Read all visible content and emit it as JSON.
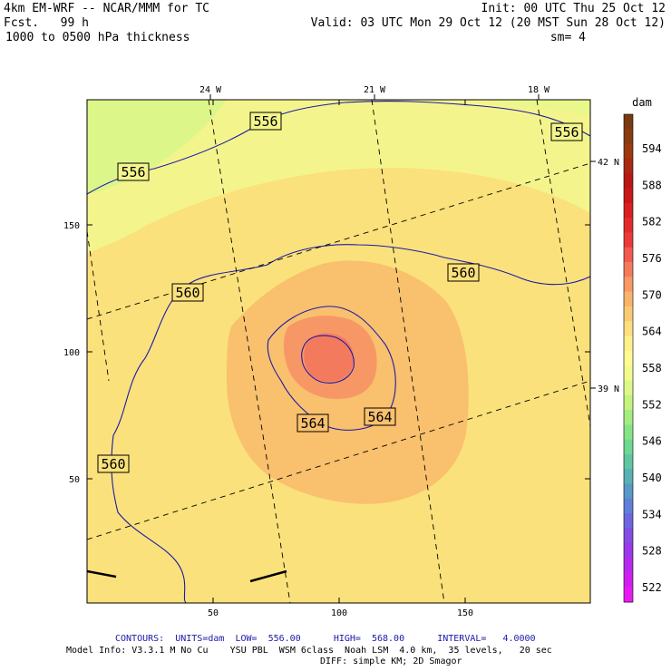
{
  "header": {
    "model_title": "4km EM-WRF -- NCAR/MMM for TC",
    "init": "Init: 00 UTC Thu 25 Oct 12",
    "fcst": "Fcst.   99 h",
    "valid": "Valid: 03 UTC Mon 29 Oct 12 (20 MST Sun 28 Oct 12)",
    "field": "1000 to 0500 hPa thickness",
    "smoothing": "sm= 4"
  },
  "footer": {
    "contours": "CONTOURS:  UNITS=dam  LOW=  556.00      HIGH=  568.00      INTERVAL=   4.0000",
    "model_info": "Model Info: V3.3.1 M No Cu    YSU PBL  WSM 6class  Noah LSM  4.0 km,  35 levels,   20 sec",
    "diff": "DIFF: simple KM; 2D Smagor"
  },
  "chart_data": {
    "type": "contour",
    "units": "dam",
    "grid_range": {
      "x": [
        1,
        199
      ],
      "y": [
        1,
        199
      ]
    },
    "x_ticks": [
      "50",
      "100",
      "150"
    ],
    "y_ticks": [
      "50",
      "100",
      "150"
    ],
    "longitude_labels": [
      "24 W",
      "21 W",
      "18 W"
    ],
    "latitude_labels": [
      "42 N",
      "39 N"
    ],
    "contour_levels": [
      {
        "value": 556,
        "label": "556",
        "label_count": 3
      },
      {
        "value": 560,
        "label": "560",
        "label_count": 3
      },
      {
        "value": 564,
        "label": "564",
        "label_count": 2
      },
      {
        "value": 568,
        "label": "",
        "label_count": 0
      }
    ],
    "contour_labels": [
      "556",
      "556",
      "556",
      "560",
      "560",
      "560",
      "564",
      "564"
    ],
    "thickness_max": {
      "x": 94,
      "y": 96,
      "approx_value": 569
    },
    "colorbar": {
      "unit_label": "dam",
      "labels": [
        "594",
        "588",
        "582",
        "576",
        "570",
        "564",
        "558",
        "552",
        "546",
        "540",
        "534",
        "528",
        "522"
      ],
      "colors": [
        "#7a3a10",
        "#8a3c10",
        "#9c3a10",
        "#a82a12",
        "#b81818",
        "#c81818",
        "#d82020",
        "#e22c2c",
        "#ea3a3a",
        "#f05a50",
        "#f47a5e",
        "#f79865",
        "#f9b36c",
        "#fbca74",
        "#fdde80",
        "#fef08a",
        "#fffb92",
        "#f3fb8c",
        "#ddf888",
        "#c4f380",
        "#a5ec82",
        "#86e488",
        "#6dd890",
        "#60c6a0",
        "#5ab0b4",
        "#5a98c8",
        "#6080d8",
        "#6e66e0",
        "#824ee4",
        "#9a3ae8",
        "#b62cec",
        "#d020f0",
        "#e81cf2"
      ]
    }
  }
}
